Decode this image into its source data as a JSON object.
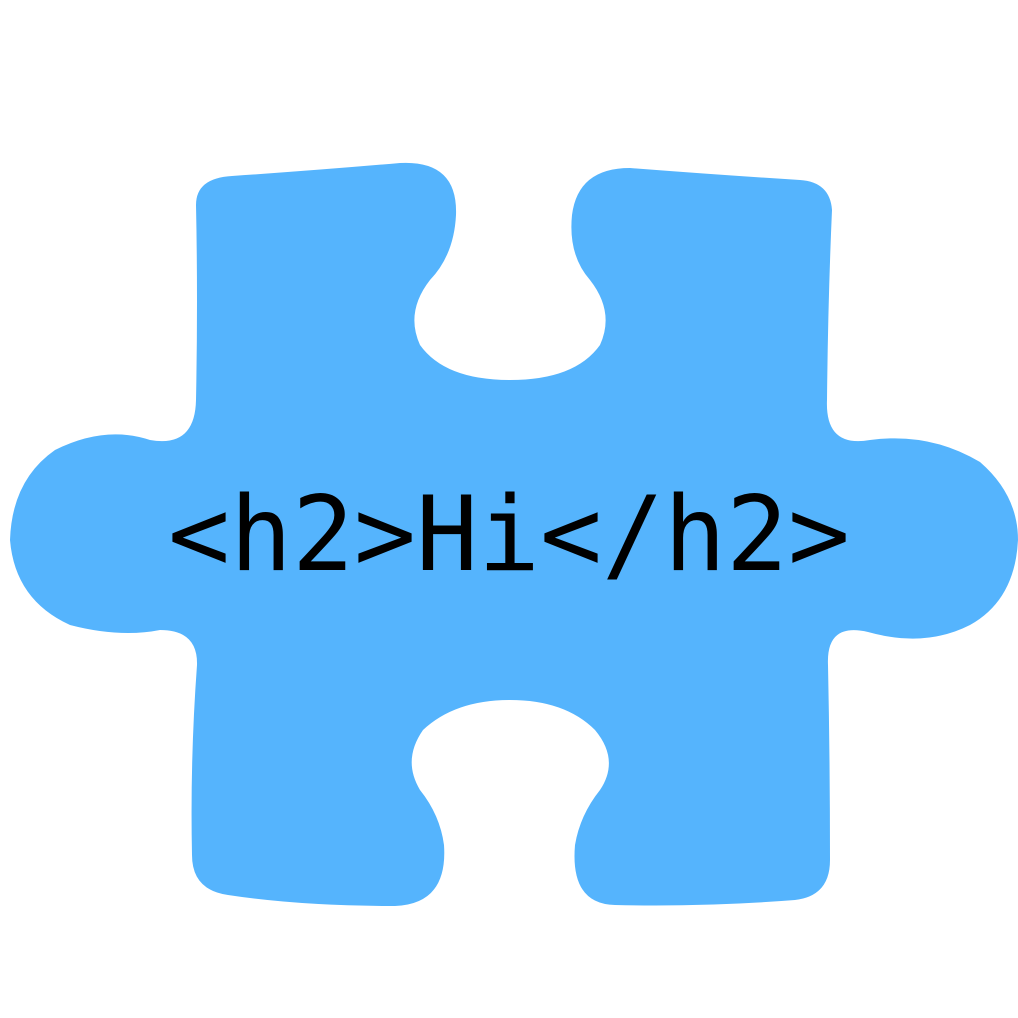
{
  "icon": {
    "name": "puzzle-piece-icon",
    "color": "#55b4fd",
    "label": "<h2>Hi</h2>",
    "label_color": "#000000"
  }
}
